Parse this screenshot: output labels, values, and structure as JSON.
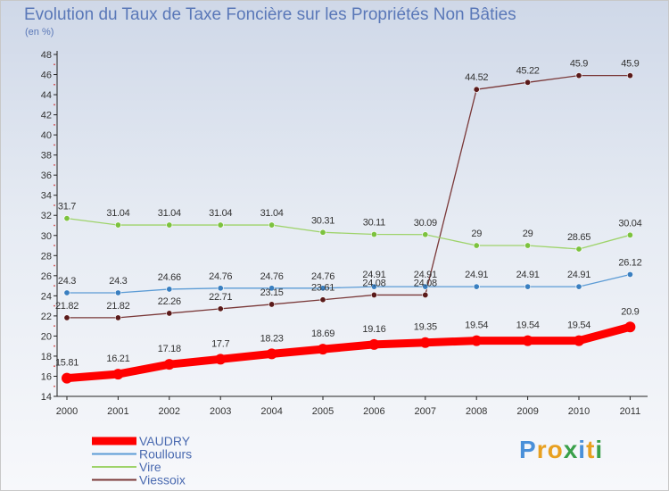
{
  "chart_data": {
    "type": "line",
    "title": "Evolution du Taux de Taxe Foncière sur les Propriétés Non Bâties",
    "subtitle": "(en %)",
    "xlabel": "",
    "ylabel": "",
    "ylim": [
      14,
      48
    ],
    "yticks": [
      14,
      16,
      18,
      20,
      22,
      24,
      26,
      28,
      30,
      32,
      34,
      36,
      38,
      40,
      42,
      44,
      46,
      48
    ],
    "categories": [
      "2000",
      "2001",
      "2002",
      "2003",
      "2004",
      "2005",
      "2006",
      "2007",
      "2008",
      "2009",
      "2010",
      "2011"
    ],
    "series": [
      {
        "name": "VAUDRY",
        "color": "#ff0000",
        "bold": true,
        "values": [
          15.81,
          16.21,
          17.18,
          17.7,
          18.23,
          18.69,
          19.16,
          19.35,
          19.54,
          19.54,
          19.54,
          20.9
        ],
        "labels": [
          "15.81",
          "16.21",
          "17.18",
          "17.7",
          "18.23",
          "18.69",
          "19.16",
          "19.35",
          "19.54",
          "19.54",
          "19.54",
          "20.9"
        ]
      },
      {
        "name": "Roullours",
        "color": "#5b9bd5",
        "marker": "#3a7fc0",
        "values": [
          24.3,
          24.3,
          24.66,
          24.76,
          24.76,
          24.76,
          24.91,
          24.91,
          24.91,
          24.91,
          24.91,
          26.12
        ],
        "labels": [
          "24.3",
          "24.3",
          "24.66",
          "24.76",
          "24.76",
          "24.76",
          "24.91",
          "24.91",
          "24.91",
          "24.91",
          "24.91",
          "26.12"
        ]
      },
      {
        "name": "Vire",
        "color": "#9ed36a",
        "marker": "#7cc23e",
        "values": [
          31.7,
          31.04,
          31.04,
          31.04,
          31.04,
          30.31,
          30.11,
          30.09,
          29,
          29,
          28.65,
          30.04
        ],
        "labels": [
          "31.7",
          "31.04",
          "31.04",
          "31.04",
          "31.04",
          "30.31",
          "30.11",
          "30.09",
          "29",
          "29",
          "28.65",
          "30.04"
        ]
      },
      {
        "name": "Viessoix",
        "color": "#7a3838",
        "marker": "#5a1a1a",
        "values": [
          21.82,
          21.82,
          22.26,
          22.71,
          23.15,
          23.61,
          24.08,
          24.08,
          44.52,
          45.22,
          45.9,
          45.9
        ],
        "labels": [
          "21.82",
          "21.82",
          "22.26",
          "22.71",
          "23.15",
          "23.61",
          "24.08",
          "24.08",
          "44.52",
          "45.22",
          "45.9",
          "45.9"
        ]
      }
    ],
    "legend": {
      "position": "bottom-left"
    }
  },
  "logo": {
    "letters": [
      "P",
      "r",
      "o",
      "x",
      "i",
      "t",
      "i"
    ],
    "colors": [
      "#4a90d9",
      "#e8a020",
      "#e8a020",
      "#3aa04a",
      "#4a90d9",
      "#e8a020",
      "#3aa04a"
    ]
  }
}
